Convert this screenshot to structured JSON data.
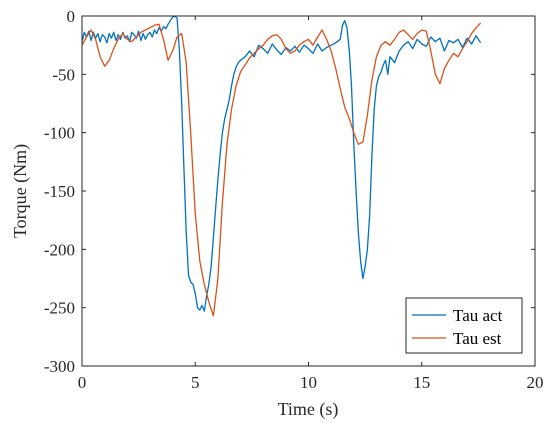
{
  "chart_data": {
    "type": "line",
    "xlabel": "Time (s)",
    "ylabel": "Torque (Nm)",
    "xlim": [
      0,
      20
    ],
    "ylim": [
      -300,
      0
    ],
    "x_ticks": [
      0,
      5,
      10,
      15,
      20
    ],
    "y_ticks": [
      0,
      -50,
      -100,
      -150,
      -200,
      -250,
      -300
    ],
    "x_tick_labels": [
      "0",
      "5",
      "10",
      "15",
      "20"
    ],
    "y_tick_labels": [
      "0",
      "-50",
      "-100",
      "-150",
      "-200",
      "-250",
      "-300"
    ],
    "grid": false,
    "legend_position": "bottom-right",
    "series": [
      {
        "name": "Tau act",
        "color": "#0072BD",
        "x": [
          0,
          0.1,
          0.2,
          0.3,
          0.4,
          0.5,
          0.6,
          0.7,
          0.8,
          0.9,
          1.0,
          1.1,
          1.2,
          1.3,
          1.4,
          1.5,
          1.6,
          1.7,
          1.8,
          1.9,
          2.0,
          2.1,
          2.2,
          2.3,
          2.4,
          2.5,
          2.6,
          2.7,
          2.8,
          2.9,
          3.0,
          3.1,
          3.2,
          3.3,
          3.4,
          3.5,
          3.6,
          3.7,
          3.8,
          3.9,
          4.0,
          4.1,
          4.2,
          4.3,
          4.4,
          4.5,
          4.6,
          4.7,
          4.8,
          4.9,
          5.0,
          5.1,
          5.2,
          5.3,
          5.4,
          5.5,
          5.6,
          5.7,
          5.8,
          5.9,
          6.0,
          6.1,
          6.2,
          6.3,
          6.4,
          6.5,
          6.6,
          6.7,
          6.8,
          6.9,
          7.0,
          7.2,
          7.4,
          7.6,
          7.8,
          8.0,
          8.2,
          8.4,
          8.6,
          8.8,
          9.0,
          9.2,
          9.4,
          9.6,
          9.8,
          10.0,
          10.2,
          10.4,
          10.6,
          10.8,
          11.0,
          11.2,
          11.4,
          11.5,
          11.6,
          11.7,
          11.8,
          11.9,
          12.0,
          12.1,
          12.2,
          12.3,
          12.4,
          12.5,
          12.6,
          12.7,
          12.8,
          12.9,
          13.0,
          13.1,
          13.2,
          13.3,
          13.4,
          13.5,
          13.6,
          13.8,
          14.0,
          14.2,
          14.4,
          14.6,
          14.8,
          15.0,
          15.2,
          15.4,
          15.6,
          15.8,
          16.0,
          16.2,
          16.4,
          16.6,
          16.8,
          17.0,
          17.2,
          17.4,
          17.6
        ],
        "y": [
          -22,
          -14,
          -18,
          -13,
          -21,
          -14,
          -19,
          -15,
          -22,
          -16,
          -18,
          -23,
          -15,
          -19,
          -14,
          -21,
          -16,
          -20,
          -14,
          -19,
          -17,
          -22,
          -14,
          -16,
          -19,
          -13,
          -21,
          -15,
          -20,
          -16,
          -14,
          -18,
          -12,
          -15,
          -10,
          -13,
          -9,
          -11,
          -7,
          -4,
          -1,
          0,
          -2,
          -30,
          -75,
          -130,
          -185,
          -222,
          -228,
          -230,
          -238,
          -250,
          -252,
          -248,
          -253,
          -240,
          -230,
          -215,
          -190,
          -165,
          -140,
          -118,
          -100,
          -88,
          -80,
          -72,
          -60,
          -50,
          -44,
          -40,
          -38,
          -35,
          -30,
          -35,
          -25,
          -28,
          -32,
          -24,
          -29,
          -33,
          -27,
          -30,
          -26,
          -31,
          -25,
          -28,
          -32,
          -24,
          -30,
          -27,
          -25,
          -23,
          -20,
          -8,
          -4,
          -10,
          -30,
          -60,
          -110,
          -150,
          -185,
          -210,
          -225,
          -215,
          -200,
          -170,
          -120,
          -80,
          -60,
          -52,
          -48,
          -42,
          -38,
          -50,
          -35,
          -40,
          -30,
          -25,
          -22,
          -28,
          -20,
          -24,
          -26,
          -18,
          -22,
          -19,
          -30,
          -21,
          -23,
          -20,
          -27,
          -19,
          -24,
          -17,
          -23
        ]
      },
      {
        "name": "Tau est",
        "color": "#D95319",
        "x": [
          0,
          0.2,
          0.4,
          0.6,
          0.8,
          1.0,
          1.2,
          1.4,
          1.6,
          1.8,
          2.0,
          2.2,
          2.4,
          2.6,
          2.8,
          3.0,
          3.2,
          3.4,
          3.6,
          3.8,
          4.0,
          4.2,
          4.4,
          4.6,
          4.8,
          5.0,
          5.2,
          5.4,
          5.6,
          5.8,
          6.0,
          6.2,
          6.4,
          6.6,
          6.8,
          7.0,
          7.2,
          7.4,
          7.6,
          7.8,
          8.0,
          8.2,
          8.4,
          8.6,
          8.8,
          9.0,
          9.2,
          9.4,
          9.6,
          9.8,
          10.0,
          10.2,
          10.4,
          10.6,
          10.8,
          11.0,
          11.2,
          11.4,
          11.6,
          11.8,
          12.0,
          12.2,
          12.4,
          12.6,
          12.8,
          13.0,
          13.2,
          13.4,
          13.6,
          13.8,
          14.0,
          14.2,
          14.4,
          14.6,
          14.8,
          15.0,
          15.2,
          15.4,
          15.6,
          15.8,
          16.0,
          16.2,
          16.4,
          16.6,
          16.8,
          17.0,
          17.2,
          17.4,
          17.6
        ],
        "y": [
          -25,
          -18,
          -12,
          -20,
          -35,
          -43,
          -38,
          -28,
          -20,
          -15,
          -20,
          -22,
          -18,
          -14,
          -12,
          -10,
          -8,
          -7,
          -20,
          -38,
          -30,
          -18,
          -15,
          -40,
          -100,
          -170,
          -210,
          -230,
          -245,
          -257,
          -225,
          -160,
          -110,
          -80,
          -60,
          -48,
          -42,
          -36,
          -32,
          -28,
          -25,
          -20,
          -17,
          -16,
          -20,
          -28,
          -32,
          -30,
          -25,
          -22,
          -20,
          -25,
          -18,
          -12,
          -20,
          -30,
          -45,
          -62,
          -78,
          -88,
          -100,
          -110,
          -108,
          -85,
          -55,
          -35,
          -25,
          -22,
          -25,
          -20,
          -14,
          -12,
          -16,
          -20,
          -15,
          -12,
          -13,
          -30,
          -50,
          -58,
          -45,
          -38,
          -32,
          -35,
          -28,
          -22,
          -15,
          -10,
          -6
        ]
      }
    ]
  }
}
